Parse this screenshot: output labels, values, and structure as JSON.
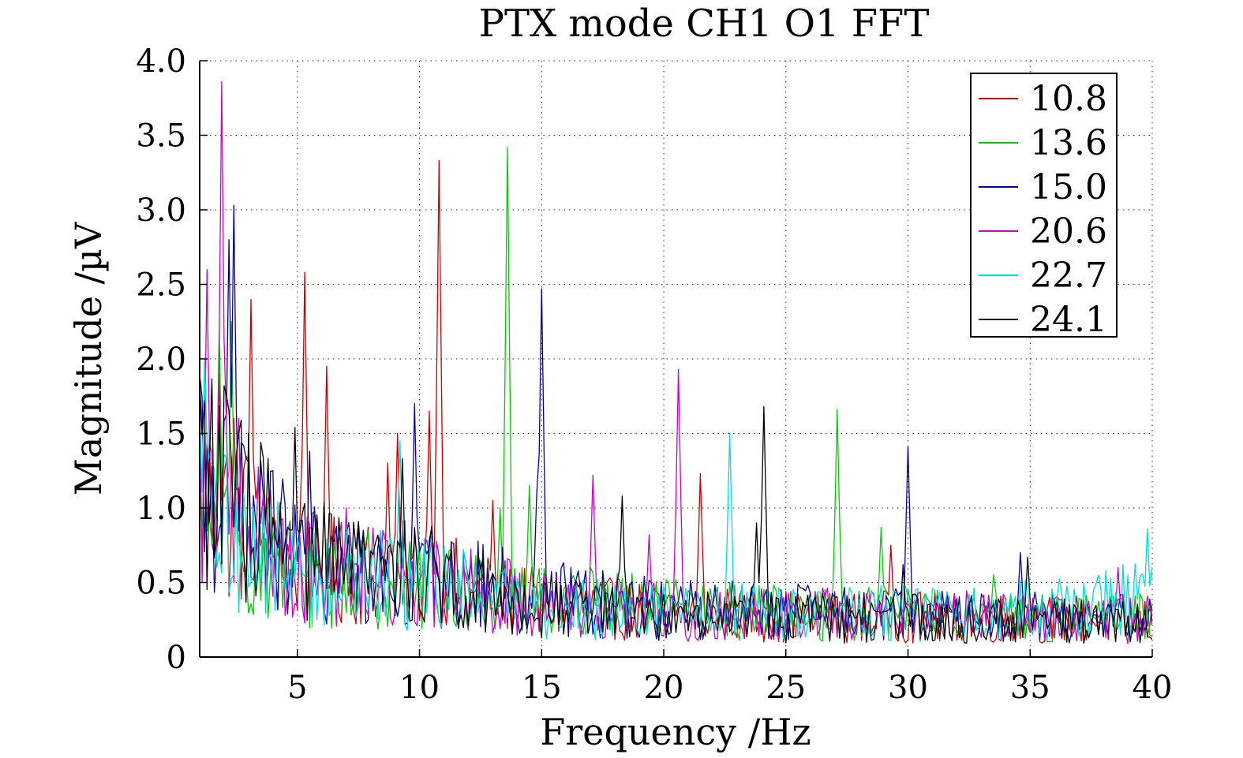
{
  "chart_data": {
    "type": "line",
    "title": "PTX mode CH1 O1 FFT",
    "xlabel": "Frequency /Hz",
    "ylabel": "Magnitude /µV",
    "xlim": [
      1,
      40
    ],
    "ylim": [
      0,
      4.0
    ],
    "xticks": [
      5,
      10,
      15,
      20,
      25,
      30,
      35,
      40
    ],
    "xtick_labels": [
      "5",
      "10",
      "15",
      "20",
      "25",
      "30",
      "35",
      "40"
    ],
    "yticks": [
      0,
      0.5,
      1.0,
      1.5,
      2.0,
      2.5,
      3.0,
      3.5,
      4.0
    ],
    "ytick_labels": [
      "0",
      "0.5",
      "1.0",
      "1.5",
      "2.0",
      "2.5",
      "3.0",
      "3.5",
      "4.0"
    ],
    "grid": true,
    "legend_position": "top-right",
    "colors": {
      "10.8": "#cc0000",
      "13.6": "#00cc00",
      "15.0": "#0000aa",
      "20.6": "#cc00cc",
      "22.7": "#00dddd",
      "24.1": "#000000"
    },
    "series": [
      {
        "name": "10.8",
        "color": "#cc0000",
        "peaks": [
          [
            1.8,
            1.9
          ],
          [
            2.4,
            1.6
          ],
          [
            3.1,
            2.4
          ],
          [
            5.3,
            2.58
          ],
          [
            6.2,
            1.95
          ],
          [
            8.7,
            1.3
          ],
          [
            9.1,
            1.5
          ],
          [
            10.4,
            1.65
          ],
          [
            10.8,
            3.33
          ],
          [
            13.0,
            1.05
          ],
          [
            21.5,
            1.23
          ],
          [
            29.3,
            0.75
          ]
        ],
        "base": [
          [
            1,
            1.1
          ],
          [
            5,
            0.6
          ],
          [
            10,
            0.55
          ],
          [
            15,
            0.35
          ],
          [
            20,
            0.3
          ],
          [
            25,
            0.28
          ],
          [
            30,
            0.27
          ],
          [
            35,
            0.26
          ],
          [
            40,
            0.24
          ]
        ]
      },
      {
        "name": "13.6",
        "color": "#00cc00",
        "peaks": [
          [
            1.8,
            2.2
          ],
          [
            2.3,
            2.25
          ],
          [
            13.3,
            1.0
          ],
          [
            13.6,
            3.42
          ],
          [
            14.2,
            0.6
          ],
          [
            14.5,
            1.15
          ],
          [
            27.1,
            1.66
          ],
          [
            28.9,
            0.87
          ],
          [
            33.5,
            0.55
          ]
        ],
        "base": [
          [
            1,
            0.9
          ],
          [
            5,
            0.55
          ],
          [
            10,
            0.5
          ],
          [
            15,
            0.4
          ],
          [
            20,
            0.32
          ],
          [
            25,
            0.3
          ],
          [
            30,
            0.28
          ],
          [
            35,
            0.27
          ],
          [
            40,
            0.26
          ]
        ]
      },
      {
        "name": "15.0",
        "color": "#0000aa",
        "peaks": [
          [
            2.2,
            2.8
          ],
          [
            2.4,
            3.03
          ],
          [
            5.5,
            1.38
          ],
          [
            9.8,
            1.7
          ],
          [
            14.8,
            1.1
          ],
          [
            15.0,
            2.47
          ],
          [
            30.0,
            1.41
          ],
          [
            34.6,
            0.7
          ]
        ],
        "base": [
          [
            1,
            1.3
          ],
          [
            5,
            0.65
          ],
          [
            10,
            0.55
          ],
          [
            15,
            0.4
          ],
          [
            20,
            0.33
          ],
          [
            25,
            0.3
          ],
          [
            30,
            0.28
          ],
          [
            35,
            0.27
          ],
          [
            40,
            0.25
          ]
        ]
      },
      {
        "name": "20.6",
        "color": "#cc00cc",
        "peaks": [
          [
            1.3,
            2.6
          ],
          [
            1.9,
            3.86
          ],
          [
            2.6,
            1.6
          ],
          [
            7.0,
            1.0
          ],
          [
            17.1,
            1.22
          ],
          [
            19.4,
            0.82
          ],
          [
            20.6,
            1.93
          ],
          [
            38.6,
            0.6
          ]
        ],
        "base": [
          [
            1,
            1.2
          ],
          [
            5,
            0.6
          ],
          [
            10,
            0.5
          ],
          [
            15,
            0.38
          ],
          [
            20,
            0.3
          ],
          [
            25,
            0.29
          ],
          [
            30,
            0.27
          ],
          [
            35,
            0.26
          ],
          [
            40,
            0.25
          ]
        ]
      },
      {
        "name": "22.7",
        "color": "#00dddd",
        "peaks": [
          [
            1.2,
            2.0
          ],
          [
            9.2,
            1.45
          ],
          [
            22.7,
            1.5
          ],
          [
            39.8,
            0.86
          ]
        ],
        "base": [
          [
            1,
            1.0
          ],
          [
            5,
            0.55
          ],
          [
            10,
            0.5
          ],
          [
            15,
            0.35
          ],
          [
            20,
            0.3
          ],
          [
            25,
            0.3
          ],
          [
            30,
            0.3
          ],
          [
            35,
            0.32
          ],
          [
            40,
            0.4
          ]
        ]
      },
      {
        "name": "24.1",
        "color": "#000000",
        "peaks": [
          [
            1.0,
            1.85
          ],
          [
            4.9,
            1.54
          ],
          [
            9.3,
            1.33
          ],
          [
            18.3,
            1.08
          ],
          [
            23.8,
            0.9
          ],
          [
            24.1,
            1.68
          ],
          [
            29.8,
            0.62
          ],
          [
            34.9,
            0.67
          ]
        ],
        "base": [
          [
            1,
            1.3
          ],
          [
            5,
            0.65
          ],
          [
            10,
            0.55
          ],
          [
            15,
            0.35
          ],
          [
            20,
            0.3
          ],
          [
            25,
            0.27
          ],
          [
            30,
            0.26
          ],
          [
            35,
            0.25
          ],
          [
            40,
            0.22
          ]
        ]
      }
    ]
  }
}
